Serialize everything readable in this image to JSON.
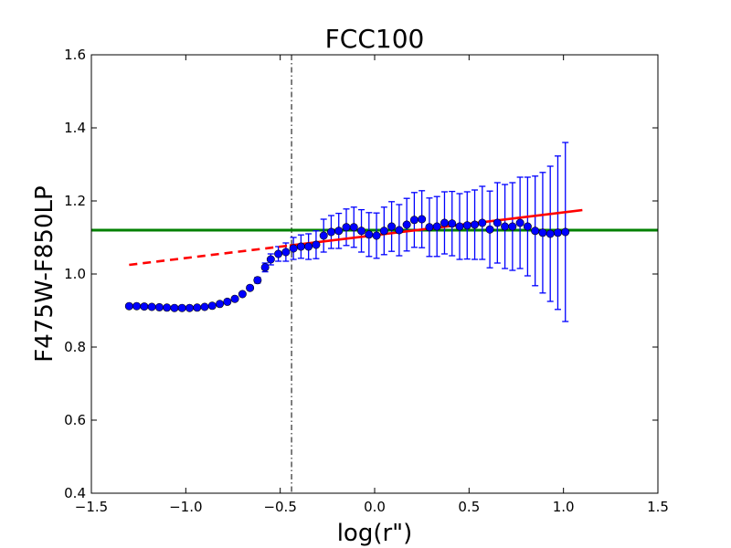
{
  "chart_data": {
    "type": "scatter",
    "title": "FCC100",
    "xlabel": "log(r\")",
    "ylabel": "F475W-F850LP",
    "xlim": [
      -1.5,
      1.5
    ],
    "ylim": [
      0.4,
      1.6
    ],
    "grid": false,
    "xticks": [
      -1.5,
      -1.0,
      -0.5,
      0.0,
      0.5,
      1.0,
      1.5
    ],
    "xtick_labels": [
      "−1.5",
      "−1.0",
      "−0.5",
      "0.0",
      "0.5",
      "1.0",
      "1.5"
    ],
    "yticks": [
      0.4,
      0.6,
      0.8,
      1.0,
      1.2,
      1.4,
      1.6
    ],
    "ytick_labels": [
      "0.4",
      "0.6",
      "0.8",
      "1.0",
      "1.2",
      "1.4",
      "1.6"
    ],
    "colors": {
      "points": "#0000ff",
      "fit": "#ff0000",
      "hline": "#008000",
      "vline": "#000000"
    },
    "series": [
      {
        "type": "scatter_errorbar",
        "color": "#0000ff",
        "points": [
          {
            "x": -1.3,
            "y": 0.912,
            "err": 0
          },
          {
            "x": -1.26,
            "y": 0.912,
            "err": 0
          },
          {
            "x": -1.22,
            "y": 0.911,
            "err": 0
          },
          {
            "x": -1.18,
            "y": 0.91,
            "err": 0
          },
          {
            "x": -1.14,
            "y": 0.909,
            "err": 0
          },
          {
            "x": -1.1,
            "y": 0.908,
            "err": 0
          },
          {
            "x": -1.06,
            "y": 0.907,
            "err": 0
          },
          {
            "x": -1.02,
            "y": 0.907,
            "err": 0
          },
          {
            "x": -0.98,
            "y": 0.907,
            "err": 0
          },
          {
            "x": -0.94,
            "y": 0.908,
            "err": 0
          },
          {
            "x": -0.9,
            "y": 0.91,
            "err": 0
          },
          {
            "x": -0.86,
            "y": 0.913,
            "err": 0
          },
          {
            "x": -0.82,
            "y": 0.918,
            "err": 0
          },
          {
            "x": -0.78,
            "y": 0.924,
            "err": 0
          },
          {
            "x": -0.74,
            "y": 0.932,
            "err": 0
          },
          {
            "x": -0.7,
            "y": 0.945,
            "err": 0
          },
          {
            "x": -0.66,
            "y": 0.962,
            "err": 0.005
          },
          {
            "x": -0.62,
            "y": 0.983,
            "err": 0.008
          },
          {
            "x": -0.58,
            "y": 1.018,
            "err": 0.012
          },
          {
            "x": -0.55,
            "y": 1.04,
            "err": 0.015
          },
          {
            "x": -0.51,
            "y": 1.055,
            "err": 0.02
          },
          {
            "x": -0.47,
            "y": 1.06,
            "err": 0.025
          },
          {
            "x": -0.43,
            "y": 1.07,
            "err": 0.03
          },
          {
            "x": -0.39,
            "y": 1.075,
            "err": 0.032
          },
          {
            "x": -0.35,
            "y": 1.075,
            "err": 0.035
          },
          {
            "x": -0.31,
            "y": 1.08,
            "err": 0.038
          },
          {
            "x": -0.27,
            "y": 1.105,
            "err": 0.045
          },
          {
            "x": -0.23,
            "y": 1.115,
            "err": 0.045
          },
          {
            "x": -0.19,
            "y": 1.118,
            "err": 0.048
          },
          {
            "x": -0.15,
            "y": 1.128,
            "err": 0.05
          },
          {
            "x": -0.11,
            "y": 1.128,
            "err": 0.055
          },
          {
            "x": -0.07,
            "y": 1.118,
            "err": 0.058
          },
          {
            "x": -0.03,
            "y": 1.108,
            "err": 0.06
          },
          {
            "x": 0.01,
            "y": 1.105,
            "err": 0.062
          },
          {
            "x": 0.05,
            "y": 1.118,
            "err": 0.065
          },
          {
            "x": 0.09,
            "y": 1.13,
            "err": 0.068
          },
          {
            "x": 0.13,
            "y": 1.12,
            "err": 0.07
          },
          {
            "x": 0.17,
            "y": 1.135,
            "err": 0.072
          },
          {
            "x": 0.21,
            "y": 1.148,
            "err": 0.075
          },
          {
            "x": 0.25,
            "y": 1.15,
            "err": 0.078
          },
          {
            "x": 0.29,
            "y": 1.128,
            "err": 0.08
          },
          {
            "x": 0.33,
            "y": 1.13,
            "err": 0.082
          },
          {
            "x": 0.37,
            "y": 1.14,
            "err": 0.085
          },
          {
            "x": 0.41,
            "y": 1.138,
            "err": 0.088
          },
          {
            "x": 0.45,
            "y": 1.13,
            "err": 0.09
          },
          {
            "x": 0.49,
            "y": 1.133,
            "err": 0.092
          },
          {
            "x": 0.53,
            "y": 1.135,
            "err": 0.095
          },
          {
            "x": 0.57,
            "y": 1.14,
            "err": 0.1
          },
          {
            "x": 0.61,
            "y": 1.122,
            "err": 0.105
          },
          {
            "x": 0.65,
            "y": 1.14,
            "err": 0.11
          },
          {
            "x": 0.69,
            "y": 1.13,
            "err": 0.115
          },
          {
            "x": 0.73,
            "y": 1.13,
            "err": 0.12
          },
          {
            "x": 0.77,
            "y": 1.14,
            "err": 0.125
          },
          {
            "x": 0.81,
            "y": 1.13,
            "err": 0.135
          },
          {
            "x": 0.85,
            "y": 1.118,
            "err": 0.15
          },
          {
            "x": 0.89,
            "y": 1.113,
            "err": 0.165
          },
          {
            "x": 0.93,
            "y": 1.11,
            "err": 0.185
          },
          {
            "x": 0.97,
            "y": 1.113,
            "err": 0.21
          },
          {
            "x": 1.01,
            "y": 1.115,
            "err": 0.245
          }
        ]
      },
      {
        "type": "line",
        "color": "#ff0000",
        "style": "dashed",
        "points": [
          {
            "x": -1.3,
            "y": 1.025
          },
          {
            "x": -0.45,
            "y": 1.078
          }
        ]
      },
      {
        "type": "line",
        "color": "#ff0000",
        "style": "solid",
        "points": [
          {
            "x": -0.45,
            "y": 1.078
          },
          {
            "x": 1.1,
            "y": 1.175
          }
        ]
      }
    ],
    "hline": {
      "y": 1.12,
      "color": "#008000"
    },
    "vline": {
      "x": -0.44,
      "color": "#000000",
      "style": "dashdot"
    }
  }
}
